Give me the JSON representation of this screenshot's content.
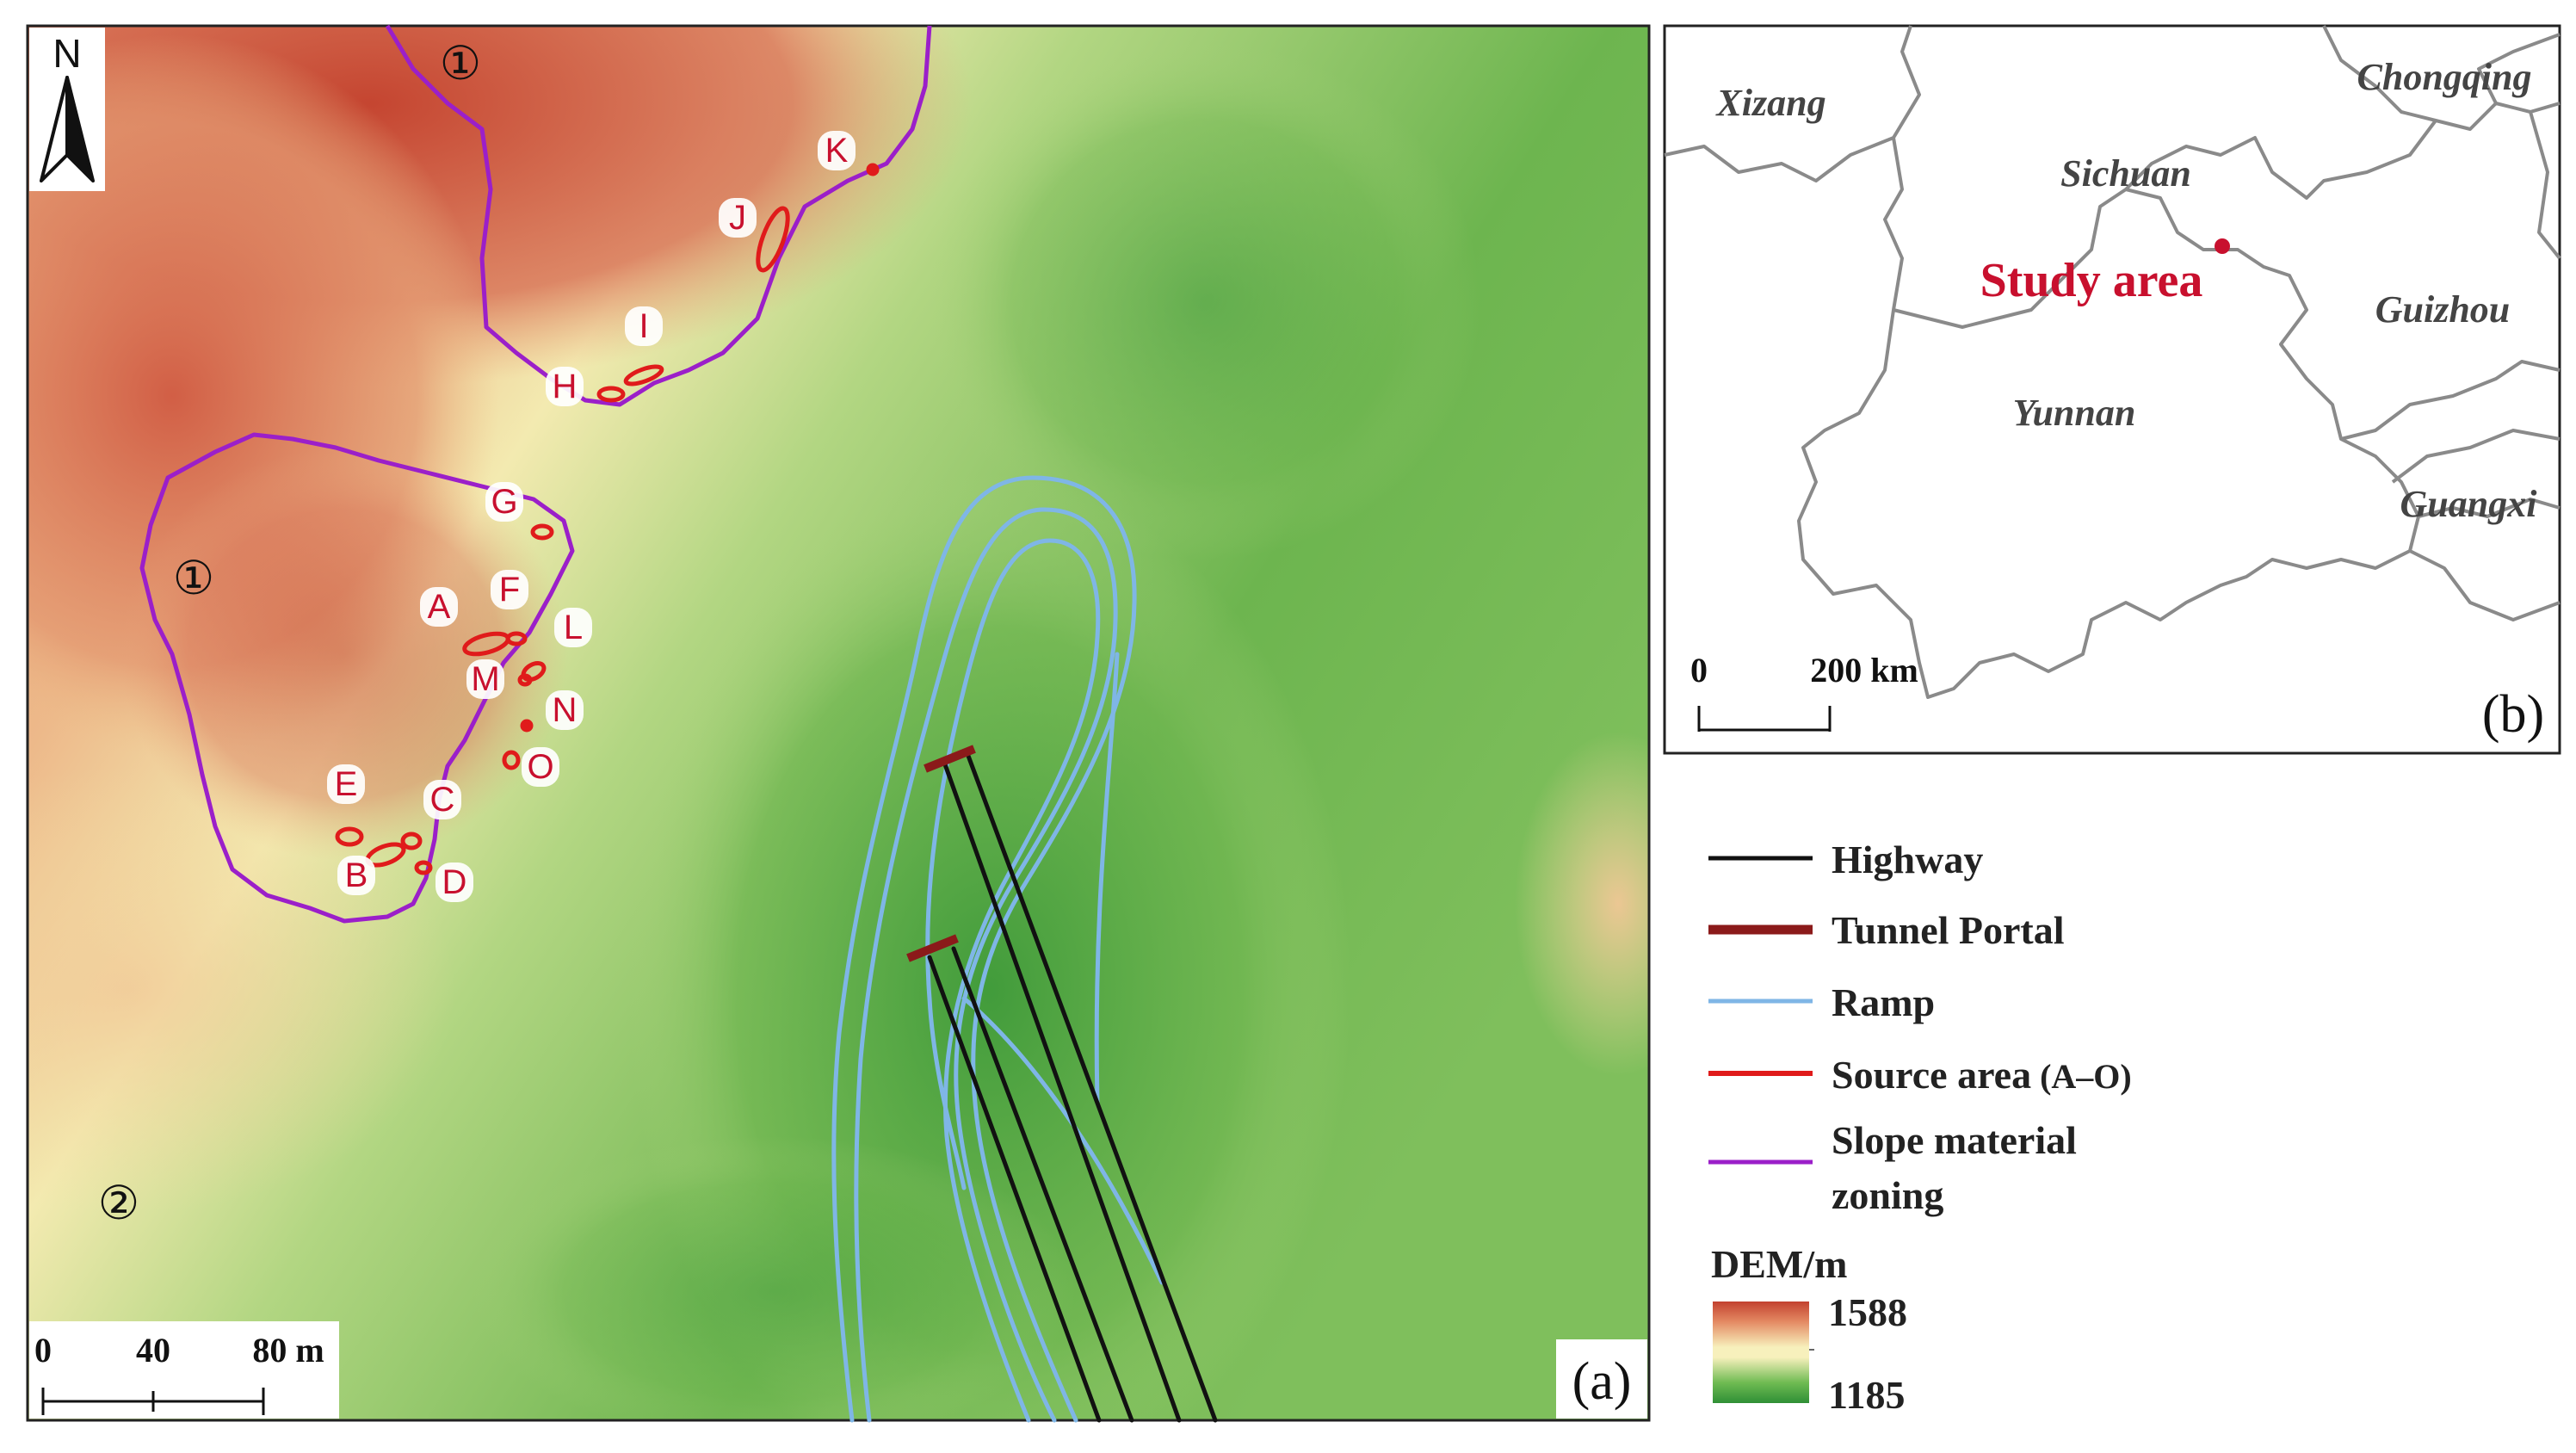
{
  "panel_a": {
    "panel_label": "(a)",
    "north": "N",
    "zones": [
      "①",
      "①",
      "②"
    ],
    "source_areas": [
      "A",
      "B",
      "C",
      "D",
      "E",
      "F",
      "G",
      "H",
      "I",
      "J",
      "K",
      "L",
      "M",
      "N",
      "O"
    ],
    "scalebar": {
      "ticks": [
        "0",
        "40",
        "80 m"
      ]
    },
    "colors": {
      "dem_high": "#c94a35",
      "dem_mid": "#f4eeb4",
      "dem_low": "#3f9e3c",
      "zoning": "#9b1fc9",
      "source_area": "#e01b1b",
      "ramp": "#7fb6e6",
      "highway": "#111111",
      "tunnel_portal": "#8b1a1a"
    }
  },
  "panel_b": {
    "panel_label": "(b)",
    "provinces": [
      "Xizang",
      "Chongqing",
      "Sichuan",
      "Guizhou",
      "Yunnan",
      "Guangxi"
    ],
    "study_area": "Study area",
    "scalebar": {
      "ticks": [
        "0",
        "200 km"
      ]
    }
  },
  "legend": {
    "items": [
      "Highway",
      "Tunnel Portal",
      "Ramp",
      "Source area",
      "Slope material",
      "zoning"
    ],
    "source_suffix": "(A–O)",
    "dem": {
      "title": "DEM/m",
      "max": "1588",
      "min": "1185"
    }
  }
}
